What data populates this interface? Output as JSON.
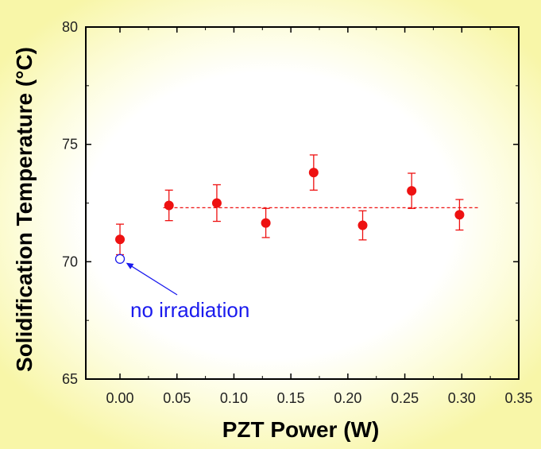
{
  "chart_data": {
    "type": "scatter",
    "title": "",
    "xlabel": "PZT Power  (W)",
    "ylabel": "Solidification Temperature  (°C)",
    "xlim": [
      -0.03,
      0.35
    ],
    "ylim": [
      65,
      80
    ],
    "x_ticks": [
      0.0,
      0.05,
      0.1,
      0.15,
      0.2,
      0.25,
      0.3,
      0.35
    ],
    "x_tick_labels": [
      "0.00",
      "0.05",
      "0.10",
      "0.15",
      "0.20",
      "0.25",
      "0.30",
      "0.35"
    ],
    "y_ticks": [
      65,
      70,
      75,
      80
    ],
    "y_tick_labels": [
      "65",
      "70",
      "75",
      "80"
    ],
    "grid": false,
    "series": [
      {
        "marker": "filled-circle",
        "color": "#ee1111",
        "points": [
          {
            "x": 0.0,
            "y": 70.95,
            "err": 0.65
          },
          {
            "x": 0.043,
            "y": 72.4,
            "err": 0.65
          },
          {
            "x": 0.085,
            "y": 72.5,
            "err": 0.78
          },
          {
            "x": 0.128,
            "y": 71.65,
            "err": 0.62
          },
          {
            "x": 0.17,
            "y": 73.8,
            "err": 0.75
          },
          {
            "x": 0.213,
            "y": 71.55,
            "err": 0.62
          },
          {
            "x": 0.256,
            "y": 73.02,
            "err": 0.75
          },
          {
            "x": 0.298,
            "y": 72.0,
            "err": 0.65
          }
        ]
      },
      {
        "marker": "open-circle",
        "color": "#1a1aee",
        "points": [
          {
            "x": 0.0,
            "y": 70.12
          }
        ]
      }
    ],
    "reference_line": {
      "y": 72.3,
      "x_start": 0.038,
      "x_end": 0.315,
      "style": "dashed",
      "color": "#ee1111"
    },
    "annotations": [
      {
        "text": "no irradiation",
        "color": "#1a1aee",
        "arrow_to": {
          "x": 0.0,
          "y": 70.12
        }
      }
    ]
  }
}
